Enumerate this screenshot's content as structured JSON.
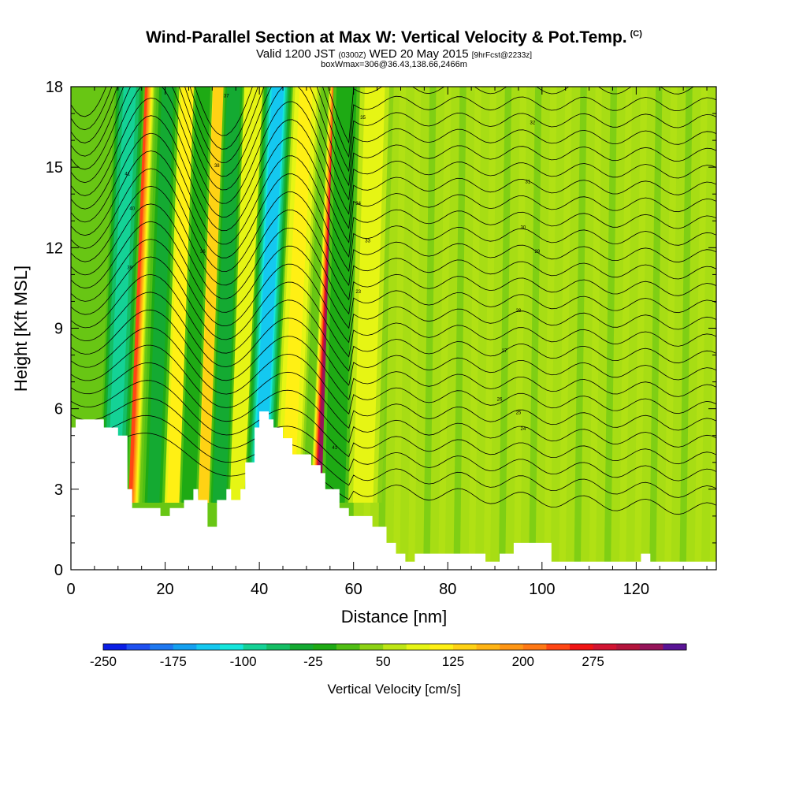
{
  "header": {
    "title": "Wind-Parallel Section at Max W: Vertical Velocity & Pot.Temp.",
    "title_mark": "(C)",
    "valid_a": "Valid 1200 JST",
    "valid_zulu": "(0300Z)",
    "valid_b": "WED 20 May 2015",
    "forecast": "[9hrFcst@2233z]",
    "box_info": "boxWmax=306@36.43,138.66,2466m"
  },
  "chart_data": {
    "type": "heatmap",
    "xlabel": "Distance [nm]",
    "ylabel": "Height [Kft MSL]",
    "xlim": [
      0,
      137
    ],
    "ylim": [
      0,
      18
    ],
    "x_ticks": [
      "0",
      "20",
      "40",
      "60",
      "80",
      "100",
      "120"
    ],
    "y_ticks": [
      "0",
      "3",
      "6",
      "9",
      "12",
      "15",
      "18"
    ],
    "colorbar": {
      "title": "Vertical Velocity [cm/s]",
      "labels": [
        "-250",
        "-175",
        "-100",
        "-25",
        "50",
        "125",
        "200",
        "275"
      ],
      "colors": [
        "#0a1ee6",
        "#1e50f0",
        "#1e78f0",
        "#14a0f0",
        "#14c8f0",
        "#14e6dc",
        "#14d296",
        "#14be64",
        "#14aa32",
        "#1eaa14",
        "#50be14",
        "#8cd214",
        "#bee614",
        "#e6f514",
        "#fff014",
        "#ffd214",
        "#ffb414",
        "#ff9614",
        "#ff7814",
        "#ff4614",
        "#f01414",
        "#d21432",
        "#b4143c",
        "#96145a",
        "#5a1496"
      ]
    },
    "terrain_kft": [
      [
        0,
        5.3
      ],
      [
        1,
        5.3
      ],
      [
        1,
        5.6
      ],
      [
        7,
        5.6
      ],
      [
        7,
        5.3
      ],
      [
        10,
        5.3
      ],
      [
        10,
        5.0
      ],
      [
        12,
        5.0
      ],
      [
        12,
        3.0
      ],
      [
        13,
        3.0
      ],
      [
        13,
        2.3
      ],
      [
        19,
        2.3
      ],
      [
        19,
        2.0
      ],
      [
        21,
        2.0
      ],
      [
        21,
        2.3
      ],
      [
        24,
        2.3
      ],
      [
        24,
        2.6
      ],
      [
        26,
        2.6
      ],
      [
        26,
        3.0
      ],
      [
        27,
        3.0
      ],
      [
        27,
        2.6
      ],
      [
        29,
        2.6
      ],
      [
        29,
        1.6
      ],
      [
        31,
        1.6
      ],
      [
        31,
        2.6
      ],
      [
        33,
        2.6
      ],
      [
        33,
        3.0
      ],
      [
        34,
        3.0
      ],
      [
        34,
        2.6
      ],
      [
        36,
        2.6
      ],
      [
        36,
        3.0
      ],
      [
        37,
        3.0
      ],
      [
        37,
        4.0
      ],
      [
        39,
        4.0
      ],
      [
        39,
        5.3
      ],
      [
        40,
        5.3
      ],
      [
        40,
        5.9
      ],
      [
        42,
        5.9
      ],
      [
        42,
        5.6
      ],
      [
        43,
        5.6
      ],
      [
        43,
        5.3
      ],
      [
        45,
        5.3
      ],
      [
        45,
        4.9
      ],
      [
        47,
        4.9
      ],
      [
        47,
        4.3
      ],
      [
        51,
        4.3
      ],
      [
        51,
        3.9
      ],
      [
        53,
        3.9
      ],
      [
        53,
        3.6
      ],
      [
        54,
        3.6
      ],
      [
        54,
        3.0
      ],
      [
        57,
        3.0
      ],
      [
        57,
        2.3
      ],
      [
        59,
        2.3
      ],
      [
        59,
        2.0
      ],
      [
        64,
        2.0
      ],
      [
        64,
        1.6
      ],
      [
        67,
        1.6
      ],
      [
        67,
        1.0
      ],
      [
        69,
        1.0
      ],
      [
        69,
        0.6
      ],
      [
        71,
        0.6
      ],
      [
        71,
        0.3
      ],
      [
        73,
        0.3
      ],
      [
        73,
        0.6
      ],
      [
        88,
        0.6
      ],
      [
        88,
        0.3
      ],
      [
        91,
        0.3
      ],
      [
        91,
        0.6
      ],
      [
        94,
        0.6
      ],
      [
        94,
        1.0
      ],
      [
        102,
        1.0
      ],
      [
        102,
        0.3
      ],
      [
        121,
        0.3
      ],
      [
        121,
        0.6
      ],
      [
        123,
        0.6
      ],
      [
        123,
        0.3
      ],
      [
        137,
        0.3
      ]
    ],
    "bands_cm_s": [
      {
        "x": 12,
        "slope_nm_per_kft": 0.23,
        "w_nm": 1.3,
        "w": 210
      },
      {
        "x": 22,
        "slope_nm_per_kft": 0.22,
        "w_nm": 1.8,
        "w": 90
      },
      {
        "x": 28.5,
        "slope_nm_per_kft": 0.22,
        "w_nm": 1.6,
        "w": 110
      },
      {
        "x": 36,
        "slope_nm_per_kft": 0.2,
        "w_nm": 2.5,
        "w": 60
      },
      {
        "x": 46,
        "slope_nm_per_kft": 0.28,
        "w_nm": 1.6,
        "w": 90
      },
      {
        "x": 53,
        "slope_nm_per_kft": 0.28,
        "w_nm": 1.1,
        "w": 306
      },
      {
        "x": 62,
        "slope_nm_per_kft": 0.18,
        "w_nm": 2.0,
        "w": 60
      },
      {
        "x": 9,
        "slope_nm_per_kft": 0.25,
        "w_nm": 1.6,
        "w": -120
      },
      {
        "x": 17.5,
        "slope_nm_per_kft": 0.22,
        "w_nm": 1.2,
        "w": -60
      },
      {
        "x": 25,
        "slope_nm_per_kft": 0.22,
        "w_nm": 1.0,
        "w": -50
      },
      {
        "x": 31.5,
        "slope_nm_per_kft": 0.22,
        "w_nm": 1.1,
        "w": -70
      },
      {
        "x": 40,
        "slope_nm_per_kft": 0.28,
        "w_nm": 1.6,
        "w": -160
      },
      {
        "x": 56,
        "slope_nm_per_kft": 0.18,
        "w_nm": 1.4,
        "w": -40
      }
    ],
    "theta_labels": [
      "41",
      "40",
      "39",
      "38",
      "37",
      "36",
      "35",
      "34",
      "33",
      "32",
      "31",
      "30",
      "29",
      "28",
      "27",
      "26",
      "25",
      "24",
      "23"
    ]
  }
}
